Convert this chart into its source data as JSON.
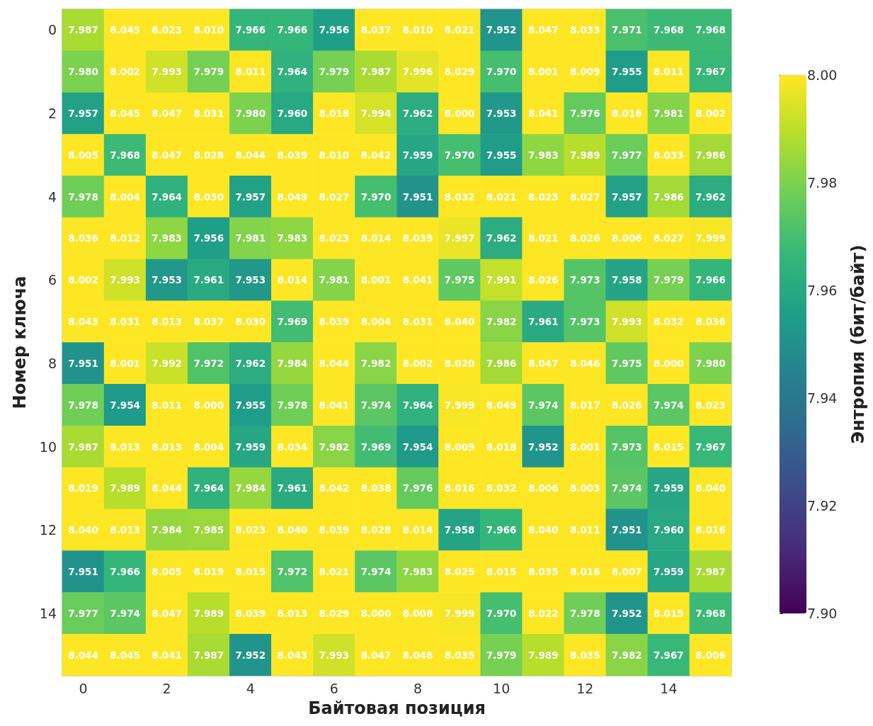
{
  "chart_data": {
    "type": "heatmap",
    "xlabel": "Байтовая позиция",
    "ylabel": "Номер ключа",
    "clabel": "Энтропия (бит/байт)",
    "categories": [
      "0",
      null,
      "2",
      null,
      "4",
      null,
      "6",
      null,
      "8",
      null,
      "10",
      null,
      "12",
      null,
      "14",
      null
    ],
    "y_categories": [
      "0",
      null,
      "2",
      null,
      "4",
      null,
      "6",
      null,
      "8",
      null,
      "10",
      null,
      "12",
      null,
      "14",
      null
    ],
    "clim": [
      7.9,
      8.0
    ],
    "cticks": [
      {
        "value": 7.9,
        "label": "7.90"
      },
      {
        "value": 7.92,
        "label": "7.92"
      },
      {
        "value": 7.94,
        "label": "7.94"
      },
      {
        "value": 7.96,
        "label": "7.96"
      },
      {
        "value": 7.98,
        "label": "7.98"
      },
      {
        "value": 8.0,
        "label": "8.00"
      }
    ],
    "colors": [
      "#440154",
      "#482878",
      "#3e4989",
      "#31688e",
      "#26828e",
      "#1f9e89",
      "#35b779",
      "#6ece58",
      "#b5de2b",
      "#fde725"
    ],
    "cells": [
      [
        7.987,
        8.045,
        8.023,
        8.01,
        7.966,
        7.966,
        7.956,
        8.037,
        8.01,
        8.021,
        7.952,
        8.047,
        8.033,
        7.971,
        7.968,
        7.968
      ],
      [
        7.98,
        8.002,
        7.993,
        7.979,
        8.011,
        7.964,
        7.979,
        7.987,
        7.996,
        8.029,
        7.97,
        8.001,
        8.009,
        7.955,
        8.011,
        7.967
      ],
      [
        7.957,
        8.045,
        8.047,
        8.031,
        7.98,
        7.96,
        8.018,
        7.994,
        7.962,
        8.0,
        7.953,
        8.041,
        7.976,
        8.016,
        7.981,
        8.002
      ],
      [
        8.005,
        7.968,
        8.047,
        8.028,
        8.044,
        8.039,
        8.01,
        8.042,
        7.959,
        7.97,
        7.955,
        7.983,
        7.989,
        7.977,
        8.033,
        7.986
      ],
      [
        7.978,
        8.004,
        7.964,
        8.03,
        7.957,
        8.049,
        8.027,
        7.97,
        7.951,
        8.032,
        8.021,
        8.023,
        8.027,
        7.957,
        7.986,
        7.962
      ],
      [
        8.036,
        8.012,
        7.983,
        7.956,
        7.981,
        7.983,
        8.023,
        8.014,
        8.039,
        7.997,
        7.962,
        8.021,
        8.026,
        8.006,
        8.027,
        7.999
      ],
      [
        8.002,
        7.993,
        7.953,
        7.961,
        7.953,
        8.014,
        7.981,
        8.001,
        8.041,
        7.975,
        7.991,
        8.026,
        7.973,
        7.958,
        7.979,
        7.966
      ],
      [
        8.043,
        8.031,
        8.013,
        8.037,
        8.03,
        7.969,
        8.039,
        8.004,
        8.031,
        8.04,
        7.982,
        7.961,
        7.973,
        7.993,
        8.032,
        8.036
      ],
      [
        7.951,
        8.001,
        7.992,
        7.972,
        7.962,
        7.984,
        8.044,
        7.982,
        8.002,
        8.02,
        7.986,
        8.047,
        8.046,
        7.975,
        8.0,
        7.98
      ],
      [
        7.978,
        7.954,
        8.011,
        8.0,
        7.955,
        7.978,
        8.041,
        7.974,
        7.964,
        7.999,
        8.049,
        7.974,
        8.017,
        8.026,
        7.974,
        8.023
      ],
      [
        7.987,
        8.013,
        8.013,
        8.004,
        7.959,
        8.034,
        7.982,
        7.969,
        7.954,
        8.009,
        8.018,
        7.952,
        8.001,
        7.973,
        8.015,
        7.967
      ],
      [
        8.019,
        7.989,
        8.044,
        7.964,
        7.984,
        7.961,
        8.042,
        8.038,
        7.976,
        8.016,
        8.032,
        8.006,
        8.003,
        7.974,
        7.959,
        8.04
      ],
      [
        8.04,
        8.013,
        7.984,
        7.985,
        8.023,
        8.04,
        8.039,
        8.028,
        8.014,
        7.958,
        7.966,
        8.04,
        8.011,
        7.951,
        7.96,
        8.016
      ],
      [
        7.951,
        7.966,
        8.005,
        8.019,
        8.015,
        7.972,
        8.021,
        7.974,
        7.983,
        8.025,
        8.015,
        8.035,
        8.016,
        8.007,
        7.959,
        7.987
      ],
      [
        7.977,
        7.974,
        8.047,
        7.989,
        8.039,
        8.013,
        8.029,
        8.0,
        8.008,
        7.999,
        7.97,
        8.022,
        7.978,
        7.952,
        8.015,
        7.968
      ],
      [
        8.044,
        8.045,
        8.041,
        7.987,
        7.952,
        8.043,
        7.993,
        8.047,
        8.046,
        8.035,
        7.979,
        7.989,
        8.035,
        7.982,
        7.967,
        8.006
      ]
    ],
    "cell_labels": [
      [
        "7.987",
        "8.045",
        "8.023",
        "8.010",
        "7.966",
        "7.966",
        "7.956",
        "8.037",
        "8.010",
        "8.021",
        "7.952",
        "8.047",
        "8.033",
        "7.971",
        "7.968",
        "7.968"
      ],
      [
        "7.980",
        "8.002",
        "7.993",
        "7.979",
        "8.011",
        "7.964",
        "7.979",
        "7.987",
        "7.996",
        "8.029",
        "7.970",
        "8.001",
        "8.009",
        "7.955",
        "8.011",
        "7.967"
      ],
      [
        "7.957",
        "8.045",
        "8.047",
        "8.031",
        "7.980",
        "7.960",
        "8.018",
        "7.994",
        "7.962",
        "8.000",
        "7.953",
        "8.041",
        "7.976",
        "8.016",
        "7.981",
        "8.002"
      ],
      [
        "8.005",
        "7.968",
        "8.047",
        "8.028",
        "8.044",
        "8.039",
        "8.010",
        "8.042",
        "7.959",
        "7.970",
        "7.955",
        "7.983",
        "7.989",
        "7.977",
        "8.033",
        "7.986"
      ],
      [
        "7.978",
        "8.004",
        "7.964",
        "8.030",
        "7.957",
        "8.049",
        "8.027",
        "7.970",
        "7.951",
        "8.032",
        "8.021",
        "8.023",
        "8.027",
        "7.957",
        "7.986",
        "7.962"
      ],
      [
        "8.036",
        "8.012",
        "7.983",
        "7.956",
        "7.981",
        "7.983",
        "8.023",
        "8.014",
        "8.039",
        "7.997",
        "7.962",
        "8.021",
        "8.026",
        "8.006",
        "8.027",
        "7.999"
      ],
      [
        "8.002",
        "7.993",
        "7.953",
        "7.961",
        "7.953",
        "8.014",
        "7.981",
        "8.001",
        "8.041",
        "7.975",
        "7.991",
        "8.026",
        "7.973",
        "7.958",
        "7.979",
        "7.966"
      ],
      [
        "8.043",
        "8.031",
        "8.013",
        "8.037",
        "8.030",
        "7.969",
        "8.039",
        "8.004",
        "8.031",
        "8.040",
        "7.982",
        "7.961",
        "7.973",
        "7.993",
        "8.032",
        "8.036"
      ],
      [
        "7.951",
        "8.001",
        "7.992",
        "7.972",
        "7.962",
        "7.984",
        "8.044",
        "7.982",
        "8.002",
        "8.020",
        "7.986",
        "8.047",
        "8.046",
        "7.975",
        "8.000",
        "7.980"
      ],
      [
        "7.978",
        "7.954",
        "8.011",
        "8.000",
        "7.955",
        "7.978",
        "8.041",
        "7.974",
        "7.964",
        "7.999",
        "8.049",
        "7.974",
        "8.017",
        "8.026",
        "7.974",
        "8.023"
      ],
      [
        "7.987",
        "8.013",
        "8.013",
        "8.004",
        "7.959",
        "8.034",
        "7.982",
        "7.969",
        "7.954",
        "8.009",
        "8.018",
        "7.952",
        "8.001",
        "7.973",
        "8.015",
        "7.967"
      ],
      [
        "8.019",
        "7.989",
        "8.044",
        "7.964",
        "7.984",
        "7.961",
        "8.042",
        "8.038",
        "7.976",
        "8.016",
        "8.032",
        "8.006",
        "8.003",
        "7.974",
        "7.959",
        "8.040"
      ],
      [
        "8.040",
        "8.013",
        "7.984",
        "7.985",
        "8.023",
        "8.040",
        "8.039",
        "8.028",
        "8.014",
        "7.958",
        "7.966",
        "8.040",
        "8.011",
        "7.951",
        "7.960",
        "8.016"
      ],
      [
        "7.951",
        "7.966",
        "8.005",
        "8.019",
        "8.015",
        "7.972",
        "8.021",
        "7.974",
        "7.983",
        "8.025",
        "8.015",
        "8.035",
        "8.016",
        "8.007",
        "7.959",
        "7.987"
      ],
      [
        "7.977",
        "7.974",
        "8.047",
        "7.989",
        "8.039",
        "8.013",
        "8.029",
        "8.000",
        "8.008",
        "7.999",
        "7.970",
        "8.022",
        "7.978",
        "7.952",
        "8.015",
        "7.968"
      ],
      [
        "8.044",
        "8.045",
        "8.041",
        "7.987",
        "7.952",
        "8.043",
        "7.993",
        "8.047",
        "8.046",
        "8.035",
        "7.979",
        "7.989",
        "8.035",
        "7.982",
        "7.967",
        "8.006"
      ]
    ]
  }
}
